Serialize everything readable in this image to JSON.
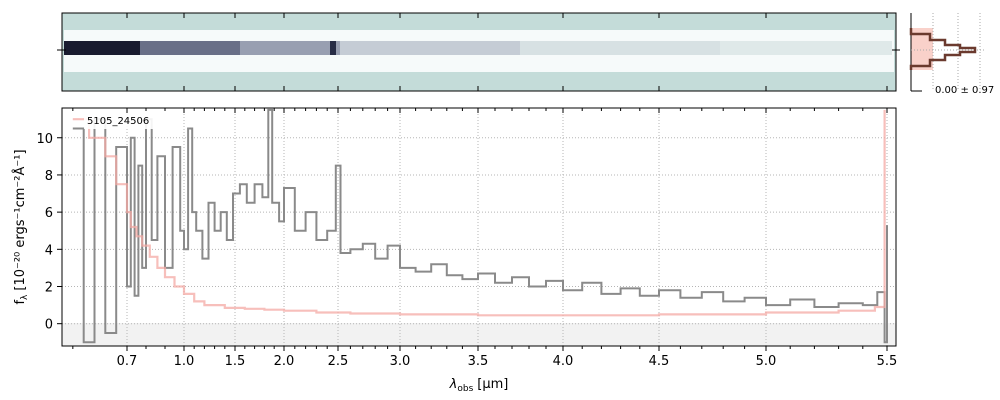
{
  "chart_data": [
    {
      "type": "heatmap",
      "panel": "2d-spectrum",
      "description_colors": {
        "background": "#c4dcd9",
        "trace": "#1b1f3a"
      }
    },
    {
      "type": "line",
      "panel": "spatial-profile",
      "annotation": "0.00 ± 0.97",
      "colors": {
        "profile": "#6b3a2e",
        "band": "#f7c6bd"
      }
    },
    {
      "type": "line",
      "panel": "1d-spectrum",
      "object_id": "5105_24506",
      "xlabel_main": "λ",
      "xlabel_sub": "obs",
      "xlabel_unit": "[μm]",
      "ylabel": "f",
      "ylabel_sub": "λ",
      "ylabel_unit": "[10⁻²⁰ ergs⁻¹cm⁻²Å⁻¹]",
      "xticks": [
        {
          "value": 0.7,
          "label": "0.7"
        },
        {
          "value": 1.0,
          "label": "1.0"
        },
        {
          "value": 1.5,
          "label": "1.5"
        },
        {
          "value": 2.0,
          "label": "2.0"
        },
        {
          "value": 2.5,
          "label": "2.5"
        },
        {
          "value": 3.0,
          "label": "3.0"
        },
        {
          "value": 3.5,
          "label": "3.5"
        },
        {
          "value": 4.0,
          "label": "4.0"
        },
        {
          "value": 4.5,
          "label": "4.5"
        },
        {
          "value": 5.0,
          "label": "5.0"
        },
        {
          "value": 5.5,
          "label": "5.5"
        }
      ],
      "yticks": [
        {
          "value": 0,
          "label": "0"
        },
        {
          "value": 2,
          "label": "2"
        },
        {
          "value": 4,
          "label": "4"
        },
        {
          "value": 6,
          "label": "6"
        },
        {
          "value": 8,
          "label": "8"
        },
        {
          "value": 10,
          "label": "10"
        }
      ],
      "ylim": [
        -1.2,
        11.6
      ],
      "grid": true,
      "series": [
        {
          "name": "",
          "color": "#8a8a8a",
          "points": [
            [
              0.6,
              10.5
            ],
            [
              0.62,
              -1.0
            ],
            [
              0.64,
              11.0
            ],
            [
              0.66,
              -0.5
            ],
            [
              0.68,
              9.5
            ],
            [
              0.7,
              2.0
            ],
            [
              0.72,
              10.0
            ],
            [
              0.74,
              1.5
            ],
            [
              0.76,
              8.5
            ],
            [
              0.78,
              3.0
            ],
            [
              0.8,
              11.0
            ],
            [
              0.83,
              4.5
            ],
            [
              0.86,
              9.0
            ],
            [
              0.9,
              3.0
            ],
            [
              0.94,
              9.5
            ],
            [
              0.98,
              5.0
            ],
            [
              1.0,
              4.0
            ],
            [
              1.04,
              10.5
            ],
            [
              1.08,
              6.0
            ],
            [
              1.12,
              5.0
            ],
            [
              1.18,
              3.5
            ],
            [
              1.24,
              6.5
            ],
            [
              1.3,
              5.0
            ],
            [
              1.36,
              6.0
            ],
            [
              1.42,
              4.5
            ],
            [
              1.48,
              7.0
            ],
            [
              1.55,
              7.5
            ],
            [
              1.62,
              6.5
            ],
            [
              1.7,
              7.5
            ],
            [
              1.78,
              6.8
            ],
            [
              1.84,
              11.5
            ],
            [
              1.88,
              6.5
            ],
            [
              1.95,
              5.5
            ],
            [
              2.0,
              7.3
            ],
            [
              2.1,
              5.0
            ],
            [
              2.2,
              6.0
            ],
            [
              2.3,
              4.5
            ],
            [
              2.4,
              5.0
            ],
            [
              2.48,
              8.5
            ],
            [
              2.52,
              3.8
            ],
            [
              2.6,
              4.0
            ],
            [
              2.7,
              4.3
            ],
            [
              2.8,
              3.5
            ],
            [
              2.9,
              4.2
            ],
            [
              3.0,
              3.0
            ],
            [
              3.1,
              2.8
            ],
            [
              3.2,
              3.2
            ],
            [
              3.3,
              2.6
            ],
            [
              3.4,
              2.4
            ],
            [
              3.5,
              2.7
            ],
            [
              3.6,
              2.2
            ],
            [
              3.7,
              2.5
            ],
            [
              3.8,
              2.0
            ],
            [
              3.9,
              2.3
            ],
            [
              4.0,
              1.8
            ],
            [
              4.1,
              2.2
            ],
            [
              4.2,
              1.6
            ],
            [
              4.3,
              1.9
            ],
            [
              4.4,
              1.5
            ],
            [
              4.5,
              1.8
            ],
            [
              4.6,
              1.4
            ],
            [
              4.7,
              1.7
            ],
            [
              4.8,
              1.2
            ],
            [
              4.9,
              1.4
            ],
            [
              5.0,
              1.0
            ],
            [
              5.1,
              1.3
            ],
            [
              5.2,
              0.9
            ],
            [
              5.3,
              1.1
            ],
            [
              5.4,
              1.0
            ],
            [
              5.46,
              1.7
            ],
            [
              5.49,
              -1.0
            ],
            [
              5.5,
              5.3
            ]
          ]
        },
        {
          "name": "",
          "color": "#f4aaa4",
          "points": [
            [
              0.6,
              11.0
            ],
            [
              0.63,
              10.0
            ],
            [
              0.66,
              9.0
            ],
            [
              0.68,
              7.5
            ],
            [
              0.7,
              6.0
            ],
            [
              0.72,
              5.2
            ],
            [
              0.75,
              4.7
            ],
            [
              0.78,
              4.2
            ],
            [
              0.82,
              3.6
            ],
            [
              0.86,
              3.0
            ],
            [
              0.9,
              2.5
            ],
            [
              0.95,
              2.0
            ],
            [
              1.0,
              1.6
            ],
            [
              1.1,
              1.2
            ],
            [
              1.2,
              1.0
            ],
            [
              1.4,
              0.85
            ],
            [
              1.6,
              0.8
            ],
            [
              1.8,
              0.75
            ],
            [
              2.0,
              0.7
            ],
            [
              2.3,
              0.6
            ],
            [
              2.6,
              0.55
            ],
            [
              3.0,
              0.5
            ],
            [
              3.5,
              0.45
            ],
            [
              4.0,
              0.45
            ],
            [
              4.5,
              0.5
            ],
            [
              5.0,
              0.6
            ],
            [
              5.3,
              0.7
            ],
            [
              5.45,
              0.9
            ],
            [
              5.49,
              11.5
            ]
          ]
        }
      ]
    }
  ]
}
